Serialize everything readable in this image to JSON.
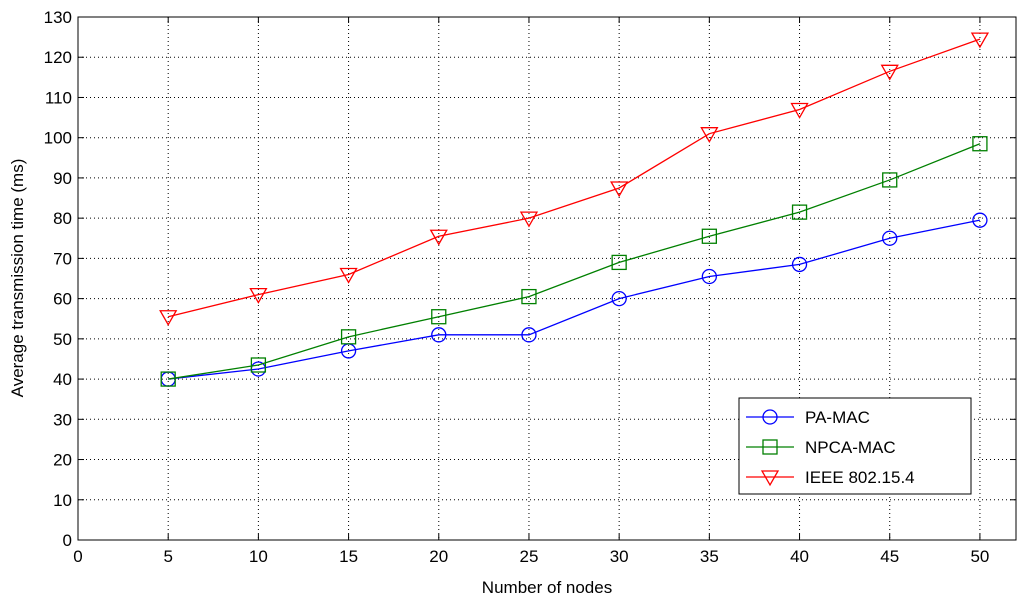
{
  "chart_data": {
    "type": "line",
    "title": "",
    "xlabel": "Number of nodes",
    "ylabel": "Average transmission time (ms)",
    "xlim": [
      0,
      52
    ],
    "ylim": [
      0,
      130
    ],
    "xticks": [
      0,
      5,
      10,
      15,
      20,
      25,
      30,
      35,
      40,
      45,
      50
    ],
    "yticks": [
      0,
      10,
      20,
      30,
      40,
      50,
      60,
      70,
      80,
      90,
      100,
      110,
      120,
      130
    ],
    "grid": true,
    "legend_position": "bottom-right",
    "x": [
      5,
      10,
      15,
      20,
      25,
      30,
      35,
      40,
      45,
      50
    ],
    "series": [
      {
        "name": "PA-MAC",
        "color": "#0000ff",
        "marker": "circle",
        "values": [
          40,
          42.5,
          47,
          51,
          51,
          60,
          65.5,
          68.5,
          75,
          79.5
        ]
      },
      {
        "name": "NPCA-MAC",
        "color": "#008000",
        "marker": "square",
        "values": [
          40,
          43.5,
          50.5,
          55.5,
          60.5,
          69,
          75.5,
          81.5,
          89.5,
          98.5
        ]
      },
      {
        "name": "IEEE 802.15.4",
        "color": "#ff0000",
        "marker": "triangle-down",
        "values": [
          55.5,
          61,
          66,
          75.5,
          80,
          87.5,
          101,
          107,
          116.5,
          124.5
        ]
      }
    ]
  }
}
